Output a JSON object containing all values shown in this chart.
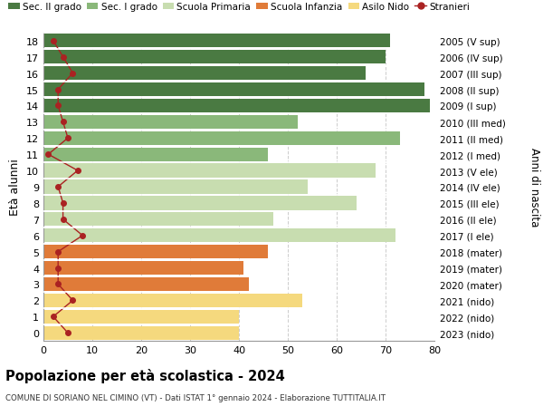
{
  "ages": [
    0,
    1,
    2,
    3,
    4,
    5,
    6,
    7,
    8,
    9,
    10,
    11,
    12,
    13,
    14,
    15,
    16,
    17,
    18
  ],
  "right_labels": [
    "2023 (nido)",
    "2022 (nido)",
    "2021 (nido)",
    "2020 (mater)",
    "2019 (mater)",
    "2018 (mater)",
    "2017 (I ele)",
    "2016 (II ele)",
    "2015 (III ele)",
    "2014 (IV ele)",
    "2013 (V ele)",
    "2012 (I med)",
    "2011 (II med)",
    "2010 (III med)",
    "2009 (I sup)",
    "2008 (II sup)",
    "2007 (III sup)",
    "2006 (IV sup)",
    "2005 (V sup)"
  ],
  "bar_values": [
    40,
    40,
    53,
    42,
    41,
    46,
    72,
    47,
    64,
    54,
    68,
    46,
    73,
    52,
    79,
    78,
    66,
    70,
    71
  ],
  "bar_colors": [
    "#f5d97e",
    "#f5d97e",
    "#f5d97e",
    "#e07b39",
    "#e07b39",
    "#e07b39",
    "#c8ddb0",
    "#c8ddb0",
    "#c8ddb0",
    "#c8ddb0",
    "#c8ddb0",
    "#8ab87a",
    "#8ab87a",
    "#8ab87a",
    "#4a7a42",
    "#4a7a42",
    "#4a7a42",
    "#4a7a42",
    "#4a7a42"
  ],
  "stranieri_values": [
    5,
    2,
    6,
    3,
    3,
    3,
    8,
    4,
    4,
    3,
    7,
    1,
    5,
    4,
    3,
    3,
    6,
    4,
    2
  ],
  "stranieri_color": "#aa2222",
  "title": "Popolazione per età scolastica - 2024",
  "subtitle": "COMUNE DI SORIANO NEL CIMINO (VT) - Dati ISTAT 1° gennaio 2024 - Elaborazione TUTTITALIA.IT",
  "ylabel_left": "Età alunni",
  "ylabel_right": "Anni di nascita",
  "xlim": [
    0,
    80
  ],
  "xticks": [
    0,
    10,
    20,
    30,
    40,
    50,
    60,
    70,
    80
  ],
  "legend_labels": [
    "Sec. II grado",
    "Sec. I grado",
    "Scuola Primaria",
    "Scuola Infanzia",
    "Asilo Nido",
    "Stranieri"
  ],
  "legend_colors": [
    "#4a7a42",
    "#8ab87a",
    "#c8ddb0",
    "#e07b39",
    "#f5d97e",
    "#aa2222"
  ],
  "background_color": "#ffffff",
  "bar_height": 0.85,
  "grid_color": "#cccccc"
}
